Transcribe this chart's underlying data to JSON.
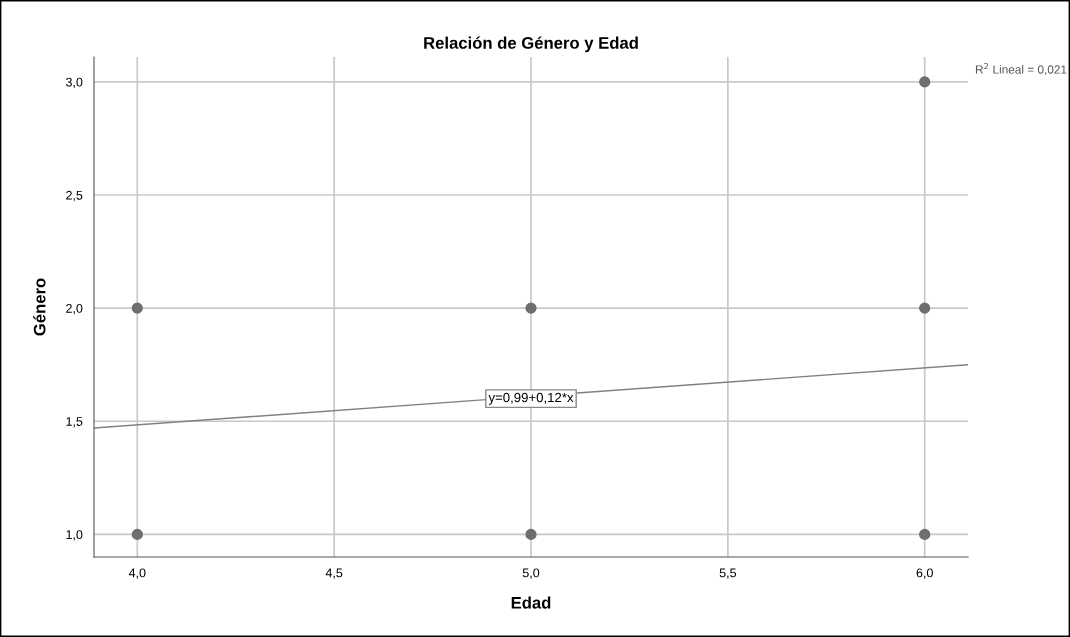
{
  "chart_data": {
    "type": "scatter",
    "title": "Relación de Género y Edad",
    "xlabel": "Edad",
    "ylabel": "Género",
    "xlim": [
      3.89,
      6.11
    ],
    "ylim": [
      0.9,
      3.11
    ],
    "xticks": [
      {
        "value": 4.0,
        "label": "4,0"
      },
      {
        "value": 4.5,
        "label": "4,5"
      },
      {
        "value": 5.0,
        "label": "5,0"
      },
      {
        "value": 5.5,
        "label": "5,5"
      },
      {
        "value": 6.0,
        "label": "6,0"
      }
    ],
    "yticks": [
      {
        "value": 1.0,
        "label": "1,0"
      },
      {
        "value": 1.5,
        "label": "1,5"
      },
      {
        "value": 2.0,
        "label": "2,0"
      },
      {
        "value": 2.5,
        "label": "2,5"
      },
      {
        "value": 3.0,
        "label": "3,0"
      }
    ],
    "grid": true,
    "series": [
      {
        "marker": "circle",
        "color": "#6e6e6e",
        "x": [
          4,
          4,
          5,
          5,
          6,
          6,
          6
        ],
        "values": [
          1,
          2,
          1,
          2,
          1,
          2,
          3
        ]
      },
      {
        "type": "line",
        "marker": "none",
        "color": "#808080",
        "x": [
          3.89,
          6.11
        ],
        "values": [
          1.47,
          1.75
        ]
      }
    ],
    "annotations": [
      {
        "text": "y=0,99+0,12*x",
        "x": 5.0,
        "y": 1.6
      },
      "R$^{2}$ Lineal = 0,021"
    ]
  }
}
